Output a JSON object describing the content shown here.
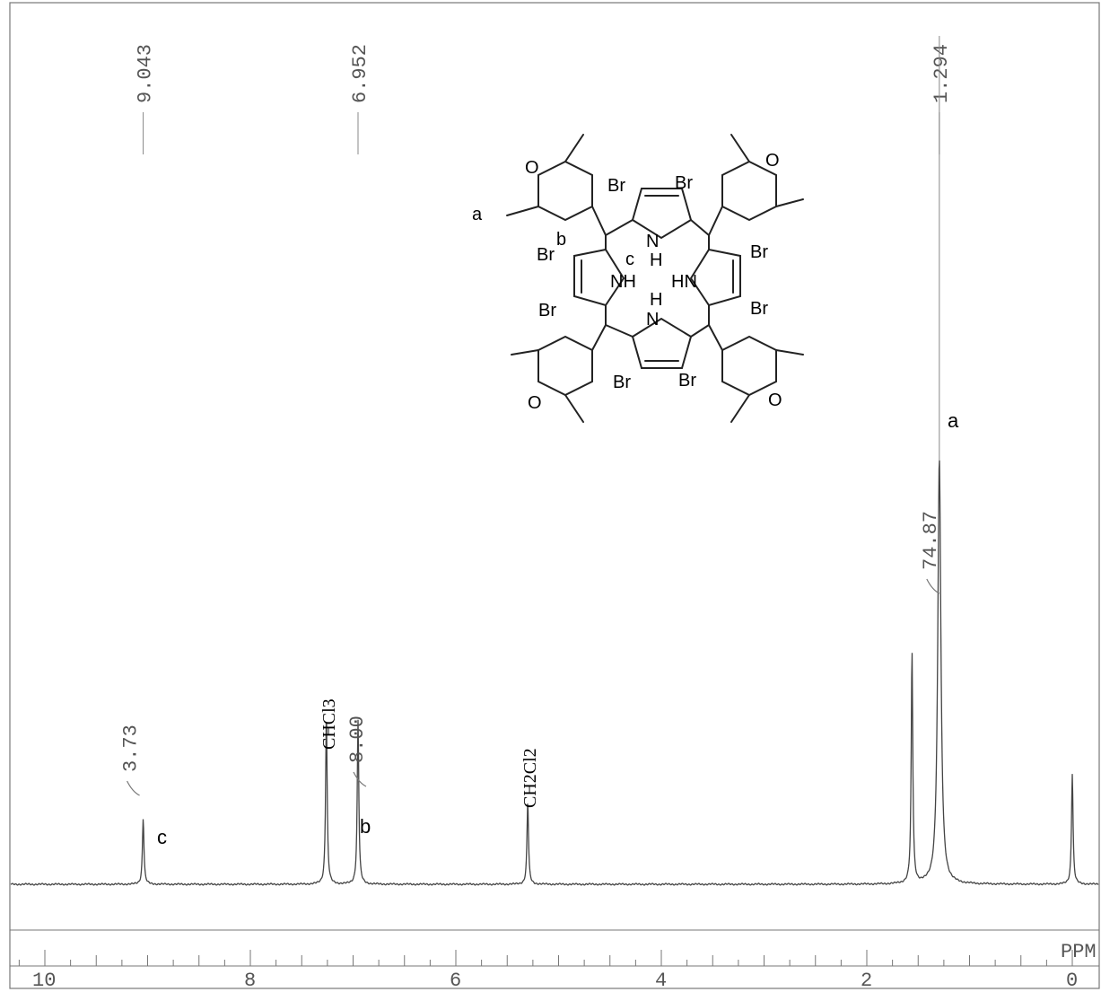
{
  "chart_data": {
    "type": "line",
    "title": "",
    "xlabel": "PPM",
    "ylabel": "",
    "xlim": [
      10.3,
      -0.2
    ],
    "x_reversed": true,
    "x_ticks_major": [
      10,
      8,
      6,
      4,
      2,
      0
    ],
    "x_tick_labels": [
      "10",
      "8",
      "6",
      "4",
      "2",
      "0"
    ],
    "grid": false,
    "legend": "none",
    "series": [
      {
        "peaks": [
          {
            "ppm": 9.043,
            "height": 0.155,
            "label": "c"
          },
          {
            "ppm": 7.26,
            "height": 0.4,
            "label": "CHCl3"
          },
          {
            "ppm": 6.952,
            "height": 0.385,
            "label": "b"
          },
          {
            "ppm": 5.3,
            "height": 0.193,
            "label": "CH2Cl2"
          },
          {
            "ppm": 1.56,
            "height": 0.545,
            "label": ""
          },
          {
            "ppm": 1.294,
            "height": 1.0,
            "label": "a"
          },
          {
            "ppm": 0.0,
            "height": 0.26,
            "label": ""
          }
        ]
      }
    ],
    "peak_picks": [
      "9.043",
      "6.952",
      "1.294"
    ],
    "peak_pick_ppm": [
      9.043,
      6.952,
      1.294
    ],
    "integrals": [
      {
        "value": "3.73",
        "ppm": 9.043
      },
      {
        "value": "8.00",
        "ppm": 6.952
      },
      {
        "value": "74.87",
        "ppm": 1.294
      }
    ],
    "annotations": {
      "a": "a",
      "b": "b",
      "c": "c",
      "chcl3": "CHCl3",
      "ch2cl2": "CH2Cl2"
    },
    "structure_labels": {
      "a": "a",
      "b": "b",
      "c": "c",
      "br": "Br",
      "o": "O",
      "nh": "NH",
      "hn": "HN",
      "n": "N",
      "h": "H"
    }
  }
}
